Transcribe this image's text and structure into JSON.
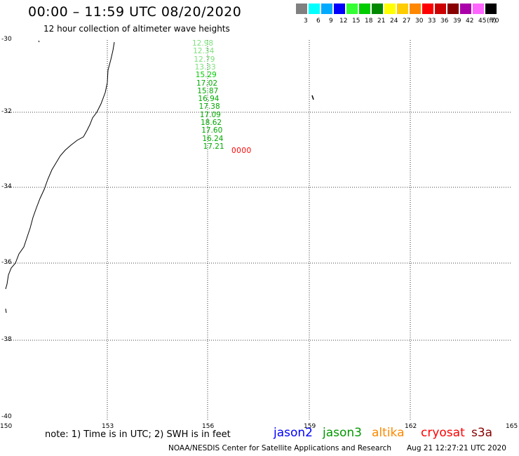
{
  "header": {
    "title": "00:00 – 11:59 UTC 08/20/2020",
    "subtitle": "12 hour collection of altimeter wave heights"
  },
  "legend": {
    "unit": "(ft)",
    "bins": [
      {
        "label": "3",
        "color": "#808080"
      },
      {
        "label": "6",
        "color": "#00ffff"
      },
      {
        "label": "9",
        "color": "#00aaff"
      },
      {
        "label": "12",
        "color": "#0000ff"
      },
      {
        "label": "15",
        "color": "#33ff33"
      },
      {
        "label": "18",
        "color": "#00cc00"
      },
      {
        "label": "21",
        "color": "#008800"
      },
      {
        "label": "24",
        "color": "#ffff00"
      },
      {
        "label": "27",
        "color": "#ffcc00"
      },
      {
        "label": "30",
        "color": "#ff8800"
      },
      {
        "label": "33",
        "color": "#ff0000"
      },
      {
        "label": "36",
        "color": "#cc0000"
      },
      {
        "label": "39",
        "color": "#880000"
      },
      {
        "label": "42",
        "color": "#aa00aa"
      },
      {
        "label": "45",
        "color": "#ff66ff"
      },
      {
        "label": "70",
        "color": "#000000"
      }
    ]
  },
  "map": {
    "lat_labels": [
      "-30",
      "-32",
      "-34",
      "-36",
      "-38",
      "-40"
    ],
    "lon_labels": [
      "150",
      "153",
      "156",
      "159",
      "162",
      "165"
    ],
    "grid": "dotted",
    "observations": {
      "jason3": [
        {
          "value": "12.98",
          "color": "#7de07d"
        },
        {
          "value": "12.34",
          "color": "#7de07d"
        },
        {
          "value": "12.79",
          "color": "#7de07d"
        },
        {
          "value": "13.33",
          "color": "#7de07d"
        },
        {
          "value": "15.29",
          "color": "#00cc00"
        },
        {
          "value": "17.02",
          "color": "#00aa00"
        },
        {
          "value": "15.87",
          "color": "#00aa00"
        },
        {
          "value": "16.94",
          "color": "#00aa00"
        },
        {
          "value": "17.38",
          "color": "#00aa00"
        },
        {
          "value": "17.09",
          "color": "#00aa00"
        },
        {
          "value": "18.62",
          "color": "#00aa00"
        },
        {
          "value": "17.60",
          "color": "#00aa00"
        },
        {
          "value": "16.24",
          "color": "#00aa00"
        },
        {
          "value": "17.21",
          "color": "#00aa00"
        }
      ],
      "cryosat": {
        "value": "0000",
        "color": "#ff0000"
      }
    }
  },
  "footer": {
    "note": "note: 1) Time is in UTC; 2) SWH is in feet",
    "satellites": [
      {
        "name": "jason2",
        "color": "#0000ff"
      },
      {
        "name": "jason3",
        "color": "#009900"
      },
      {
        "name": "altika",
        "color": "#ff8800"
      },
      {
        "name": "cryosat",
        "color": "#ff0000"
      },
      {
        "name": "s3a",
        "color": "#880000"
      }
    ],
    "credit": "NOAA/NESDIS Center for Satellite Applications and Research",
    "timestamp": "Aug 21 12:27:21 UTC 2020"
  }
}
